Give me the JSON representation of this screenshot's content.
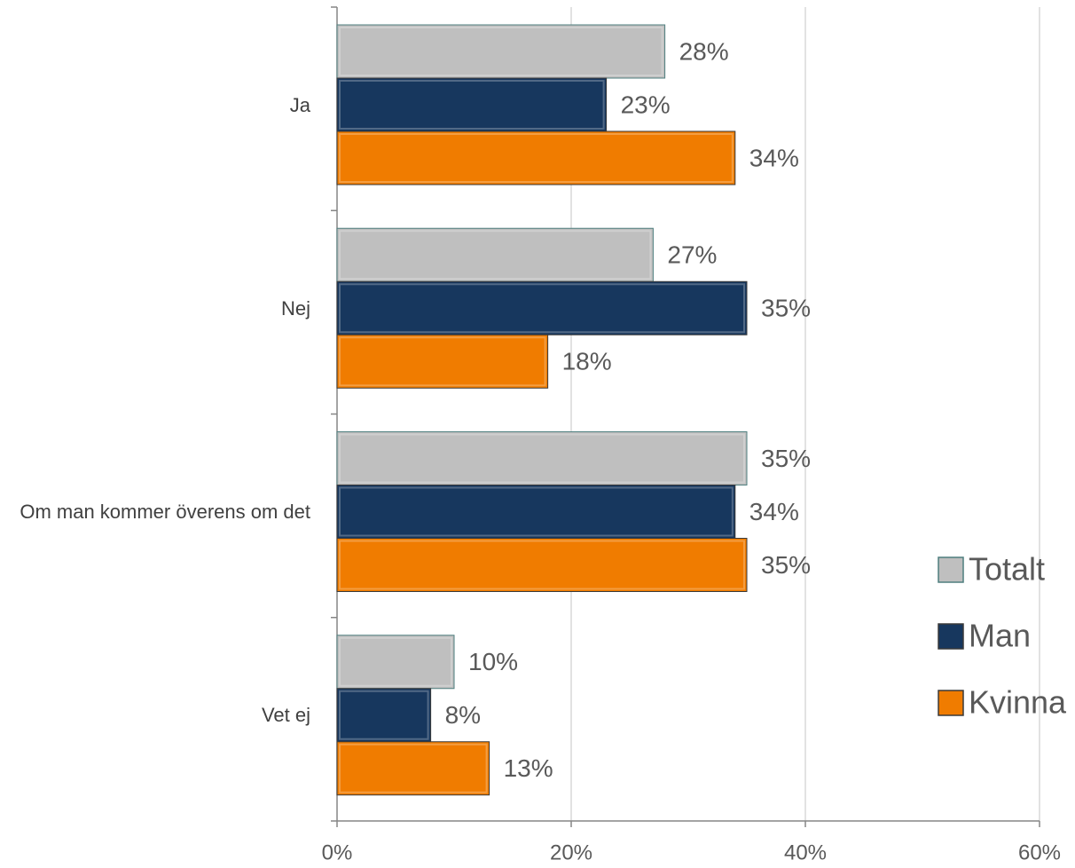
{
  "chart_data": {
    "type": "hbar",
    "categories": [
      "Ja",
      "Nej",
      "Om man kommer överens om det",
      "Vet ej"
    ],
    "series": [
      {
        "name": "Totalt",
        "color": "#bfbfbf",
        "values": [
          28,
          27,
          35,
          10
        ],
        "value_labels": [
          "28%",
          "27%",
          "35%",
          "10%"
        ]
      },
      {
        "name": "Man",
        "color": "#17375e",
        "values": [
          23,
          35,
          34,
          8
        ],
        "value_labels": [
          "23%",
          "35%",
          "34%",
          "8%"
        ]
      },
      {
        "name": "Kvinna",
        "color": "#f07c00",
        "values": [
          34,
          18,
          35,
          13
        ],
        "value_labels": [
          "34%",
          "18%",
          "35%",
          "13%"
        ]
      }
    ],
    "xlim": [
      0,
      60
    ],
    "xticks": [
      {
        "value": 0,
        "label": "0%"
      },
      {
        "value": 20,
        "label": "20%"
      },
      {
        "value": 40,
        "label": "40%"
      },
      {
        "value": 60,
        "label": "60%"
      }
    ],
    "grid": true,
    "legend": "right"
  }
}
